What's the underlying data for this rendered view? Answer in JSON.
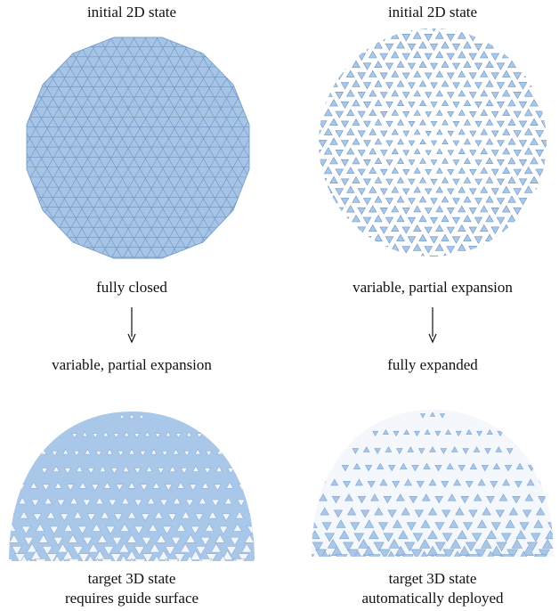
{
  "columns": [
    {
      "top_label": "initial 2D state",
      "middle_label": "fully closed",
      "arrow_label": "variable, partial expansion",
      "bottom_label": [
        "target 3D state",
        "requires guide surface"
      ]
    },
    {
      "top_label": "initial 2D state",
      "middle_label": "variable, partial expansion",
      "arrow_label": "fully expanded",
      "bottom_label": [
        "target 3D state",
        "automatically deployed"
      ]
    }
  ]
}
